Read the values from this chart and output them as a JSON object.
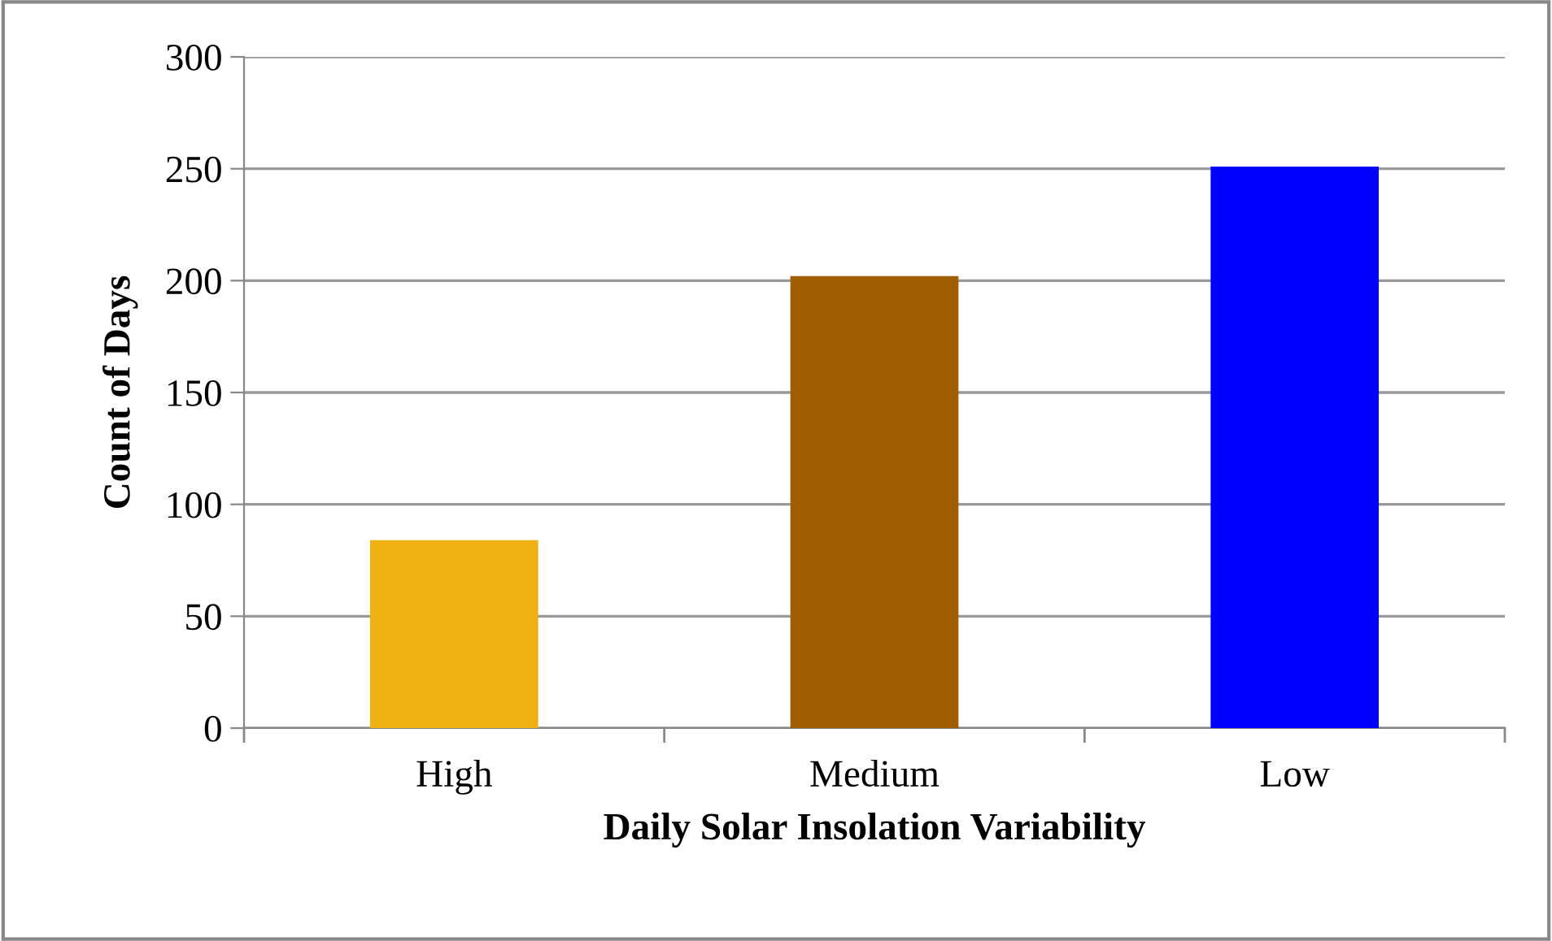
{
  "chart_data": {
    "type": "bar",
    "xlabel": "Daily Solar Insolation Variability",
    "ylabel": "Count of Days",
    "categories": [
      "High",
      "Medium",
      "Low"
    ],
    "values": [
      84,
      202,
      251
    ],
    "colors": [
      "#efb112",
      "#a05e00",
      "#0000ff"
    ],
    "ylim": [
      0,
      300
    ],
    "yticks": [
      0,
      50,
      100,
      150,
      200,
      250,
      300
    ],
    "grid": "y",
    "legend": false
  }
}
